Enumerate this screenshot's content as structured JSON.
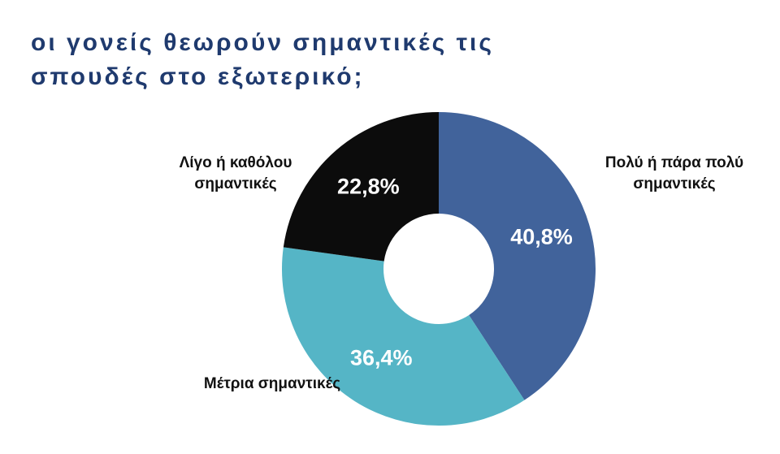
{
  "chart_data": {
    "type": "donut",
    "title": "οι γονείς θεωρούν σημαντικές τις σπουδές στο εξωτερικό;",
    "categories": [
      "Πολύ ή πάρα πολύ σημαντικές",
      "Μέτρια σημαντικές",
      "Λίγο ή καθόλου σημαντικές"
    ],
    "values": [
      40.8,
      36.4,
      22.8
    ],
    "value_labels": [
      "40,8%",
      "36,4%",
      "22,8%"
    ],
    "colors": [
      "#41639b",
      "#55b5c6",
      "#0c0c0c"
    ]
  }
}
